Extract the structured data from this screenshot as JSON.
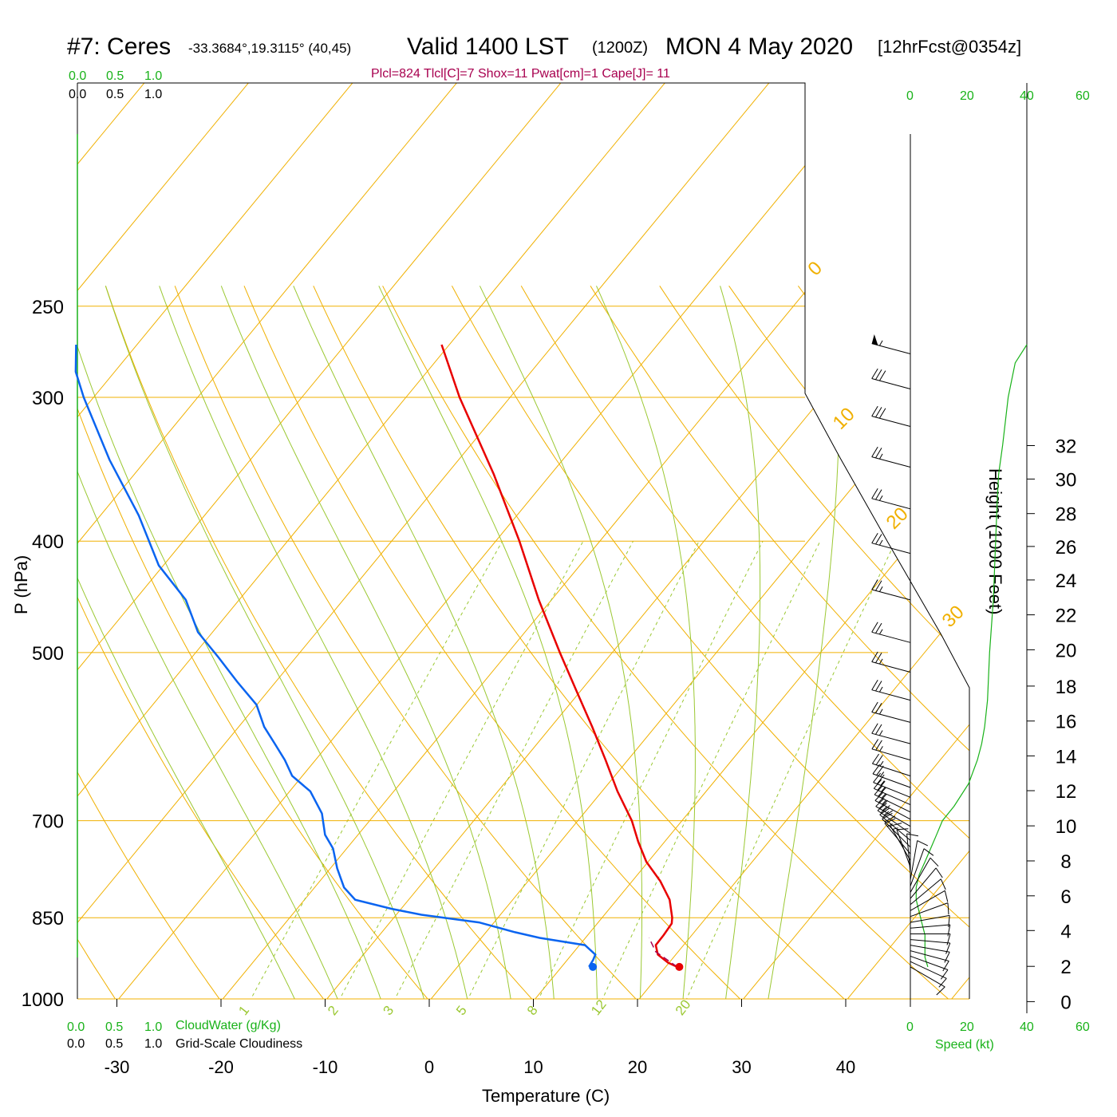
{
  "header": {
    "station": "#7: Ceres",
    "location": "-33.3684°,19.3115° (40,45)",
    "valid": "Valid 1400 LST",
    "zulu": "(1200Z)",
    "date": "MON 4 May 2020",
    "forecast": "[12hrFcst@0354z]",
    "indices": "Plcl=824 Tlcl[C]=7 Shox=11 Pwat[cm]=1 Cape[J]= 11"
  },
  "left_scales": {
    "cloudwater_ticks": [
      "0.0",
      "0.5",
      "1.0"
    ],
    "cloudiness_ticks": [
      "0.0",
      "0.5",
      "1.0"
    ],
    "cloudwater_label": "CloudWater (g/Kg)",
    "cloudiness_label": "Grid-Scale Cloudiness"
  },
  "speed_axis": {
    "ticks": [
      "0",
      "20",
      "40",
      "60"
    ],
    "label": "Speed (kt)"
  },
  "colors": {
    "isotherm": "#f0b000",
    "dry_adiabat": "#9bc832",
    "mixing_ratio": "#9bc832",
    "temperature": "#e80000",
    "dewpoint": "#0a64f0",
    "wind_speed": "#19b219",
    "info_text": "#a8004f"
  },
  "chart_data": {
    "type": "line",
    "subtype": "skew-T log-P sounding",
    "xlabel": "Temperature (C)",
    "ylabel": "P (hPa)",
    "y2label": "Height (1000 Feet)",
    "pressure_ticks": [
      250,
      300,
      400,
      500,
      700,
      850,
      1000
    ],
    "temperature_ticks": [
      -30,
      -20,
      -10,
      0,
      10,
      20,
      30,
      40
    ],
    "height_ticks": [
      0,
      2,
      4,
      6,
      8,
      10,
      12,
      14,
      16,
      18,
      20,
      22,
      24,
      26,
      28,
      30,
      32
    ],
    "height_axis_ticks_p": [
      1005.5,
      937,
      872.1,
      813.6,
      758.6,
      707.3,
      659.2,
      614.8,
      573.4,
      534.7,
      497.2,
      463.6,
      432.4,
      404.3,
      378.6,
      353.3,
      330.4
    ],
    "height_axis_max_p": 270,
    "isotherm_labels": [
      10,
      0,
      -10,
      -20,
      -30
    ],
    "theta_labels": [
      0,
      10,
      20,
      30
    ],
    "mixing_ratio_labels": [
      "1",
      "2",
      "3",
      "5",
      "8",
      "12",
      "20"
    ],
    "mixing_ratio_g_per_kg": [
      1,
      2,
      3,
      5,
      8,
      12,
      20
    ],
    "temperature_profile": {
      "name": "Temperature",
      "p": [
        938,
        930,
        915,
        898,
        880,
        860,
        850,
        820,
        790,
        760,
        730,
        700,
        660,
        620,
        580,
        540,
        500,
        450,
        400,
        350,
        300,
        270
      ],
      "t": [
        21.4,
        20.2,
        18.6,
        17.7,
        17.7,
        17.6,
        17.2,
        15.6,
        13.3,
        10.5,
        8.2,
        6.0,
        2.4,
        -1.1,
        -4.9,
        -9.1,
        -13.6,
        -19.6,
        -25.9,
        -33.4,
        -42.5,
        -48.2
      ]
    },
    "dewpoint_profile": {
      "name": "Dewpoint",
      "p": [
        938,
        936,
        925,
        915,
        898,
        885,
        875,
        858,
        845,
        835,
        820,
        800,
        770,
        740,
        720,
        690,
        660,
        640,
        620,
        600,
        580,
        555,
        530,
        505,
        480,
        450,
        420,
        380,
        340,
        300,
        285,
        270
      ],
      "t": [
        13.2,
        12.9,
        12.8,
        12.6,
        10.9,
        6.0,
        3.2,
        -1.0,
        -7.1,
        -10.4,
        -14.6,
        -16.6,
        -18.7,
        -20.6,
        -22.4,
        -24.3,
        -27.1,
        -30.0,
        -31.9,
        -34.1,
        -36.4,
        -38.8,
        -42.4,
        -46.0,
        -49.9,
        -53.5,
        -58.7,
        -64.4,
        -71.4,
        -78.6,
        -81.3,
        -83.3
      ]
    },
    "surface_temperature_marker": {
      "p": 938,
      "t": 21.6
    },
    "surface_dewpoint_marker": {
      "p": 938,
      "t": 13.3
    },
    "parcel_path": {
      "name": "Parcel (dashed)",
      "p": [
        938,
        910,
        885
      ],
      "t": [
        21.4,
        18.2,
        16.5
      ]
    },
    "wind_speed_profile": {
      "name": "Wind speed (kt)",
      "speed_range": [
        0,
        60
      ],
      "p": [
        938,
        920,
        900,
        880,
        860,
        840,
        820,
        800,
        780,
        760,
        740,
        720,
        700,
        680,
        650,
        620,
        600,
        580,
        550,
        500,
        450,
        400,
        370,
        350,
        330,
        300,
        280,
        270
      ],
      "kt": [
        6,
        5,
        5,
        5,
        4,
        3,
        2,
        2,
        3,
        5,
        7,
        9,
        11,
        15,
        20,
        23,
        24.5,
        25.5,
        26.5,
        27.2,
        28.5,
        29.3,
        29.8,
        30.3,
        31.7,
        33.6,
        36,
        40
      ]
    },
    "wind_barbs": {
      "p": [
        938,
        928,
        918,
        908,
        898,
        888,
        878,
        868,
        858,
        848,
        838,
        828,
        818,
        808,
        798,
        788,
        778,
        768,
        758,
        748,
        738,
        728,
        718,
        708,
        698,
        688,
        678,
        668,
        655,
        640,
        620,
        600,
        575,
        550,
        520,
        490,
        450,
        410,
        375,
        345,
        318,
        295,
        275
      ],
      "direction_deg": [
        120,
        115,
        110,
        105,
        100,
        95,
        90,
        85,
        80,
        70,
        60,
        50,
        40,
        30,
        20,
        10,
        355,
        340,
        330,
        320,
        315,
        310,
        305,
        300,
        298,
        296,
        294,
        292,
        290,
        288,
        286,
        285,
        285,
        285,
        285,
        285,
        285,
        285,
        285,
        285,
        285,
        285,
        285
      ],
      "speed_kt": [
        10,
        10,
        10,
        10,
        10,
        10,
        10,
        10,
        10,
        10,
        10,
        10,
        10,
        10,
        10,
        10,
        10,
        12,
        14,
        16,
        20,
        22,
        24,
        25,
        26,
        26,
        26,
        26,
        26,
        26,
        26,
        26,
        26,
        26,
        26,
        26,
        26,
        26,
        27,
        28,
        30,
        32,
        55
      ]
    }
  }
}
